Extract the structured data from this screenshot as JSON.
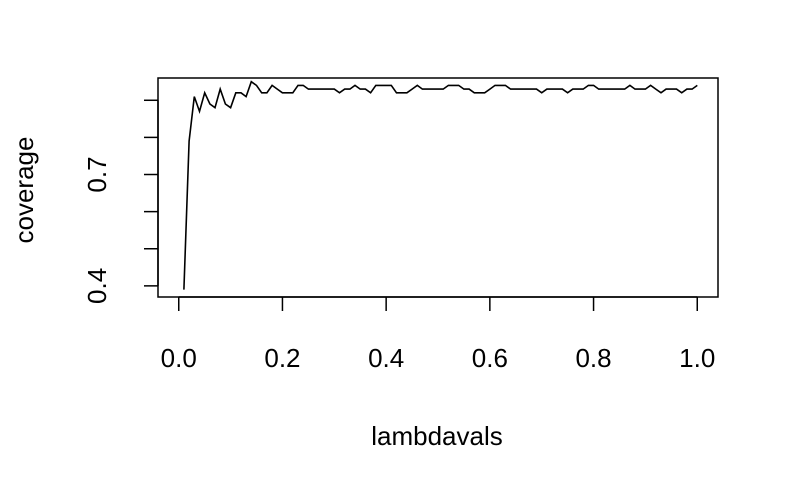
{
  "chart_data": {
    "type": "line",
    "title": "",
    "xlabel": "lambdavals",
    "ylabel": "coverage",
    "xlim": [
      -0.04,
      1.04
    ],
    "ylim": [
      0.37,
      0.96
    ],
    "xticks": [
      0.0,
      0.2,
      0.4,
      0.6,
      0.8,
      1.0
    ],
    "xtick_labels": [
      "0.0",
      "0.2",
      "0.4",
      "0.6",
      "0.8",
      "1.0"
    ],
    "yticks": [
      0.4,
      0.5,
      0.6,
      0.7,
      0.8,
      0.9
    ],
    "ytick_labels": [
      "0.4",
      "",
      "",
      "0.7",
      "",
      ""
    ],
    "grid": false,
    "legend": "none",
    "line_color": "#000000",
    "series": [
      {
        "x": [
          0.01,
          0.02,
          0.03,
          0.04,
          0.05,
          0.06,
          0.07,
          0.08,
          0.09,
          0.1,
          0.11,
          0.12,
          0.13,
          0.14,
          0.15,
          0.16,
          0.17,
          0.18,
          0.19,
          0.2,
          0.21,
          0.22,
          0.23,
          0.24,
          0.25,
          0.26,
          0.27,
          0.28,
          0.29,
          0.3,
          0.31,
          0.32,
          0.33,
          0.34,
          0.35,
          0.36,
          0.37,
          0.38,
          0.39,
          0.4,
          0.41,
          0.42,
          0.43,
          0.44,
          0.45,
          0.46,
          0.47,
          0.48,
          0.49,
          0.5,
          0.51,
          0.52,
          0.53,
          0.54,
          0.55,
          0.56,
          0.57,
          0.58,
          0.59,
          0.6,
          0.61,
          0.62,
          0.63,
          0.64,
          0.65,
          0.66,
          0.67,
          0.68,
          0.69,
          0.7,
          0.71,
          0.72,
          0.73,
          0.74,
          0.75,
          0.76,
          0.77,
          0.78,
          0.79,
          0.8,
          0.81,
          0.82,
          0.83,
          0.84,
          0.85,
          0.86,
          0.87,
          0.88,
          0.89,
          0.9,
          0.91,
          0.92,
          0.93,
          0.94,
          0.95,
          0.96,
          0.97,
          0.98,
          0.99,
          1.0
        ],
        "values": [
          0.39,
          0.79,
          0.91,
          0.87,
          0.92,
          0.89,
          0.88,
          0.93,
          0.89,
          0.88,
          0.92,
          0.92,
          0.91,
          0.95,
          0.94,
          0.92,
          0.92,
          0.94,
          0.93,
          0.92,
          0.92,
          0.92,
          0.94,
          0.94,
          0.93,
          0.93,
          0.93,
          0.93,
          0.93,
          0.93,
          0.92,
          0.93,
          0.93,
          0.94,
          0.93,
          0.93,
          0.92,
          0.94,
          0.94,
          0.94,
          0.94,
          0.92,
          0.92,
          0.92,
          0.93,
          0.94,
          0.93,
          0.93,
          0.93,
          0.93,
          0.93,
          0.94,
          0.94,
          0.94,
          0.93,
          0.93,
          0.92,
          0.92,
          0.92,
          0.93,
          0.94,
          0.94,
          0.94,
          0.93,
          0.93,
          0.93,
          0.93,
          0.93,
          0.93,
          0.92,
          0.93,
          0.93,
          0.93,
          0.93,
          0.92,
          0.93,
          0.93,
          0.93,
          0.94,
          0.94,
          0.93,
          0.93,
          0.93,
          0.93,
          0.93,
          0.93,
          0.94,
          0.93,
          0.93,
          0.93,
          0.94,
          0.93,
          0.92,
          0.93,
          0.93,
          0.93,
          0.92,
          0.93,
          0.93,
          0.94
        ]
      }
    ]
  }
}
